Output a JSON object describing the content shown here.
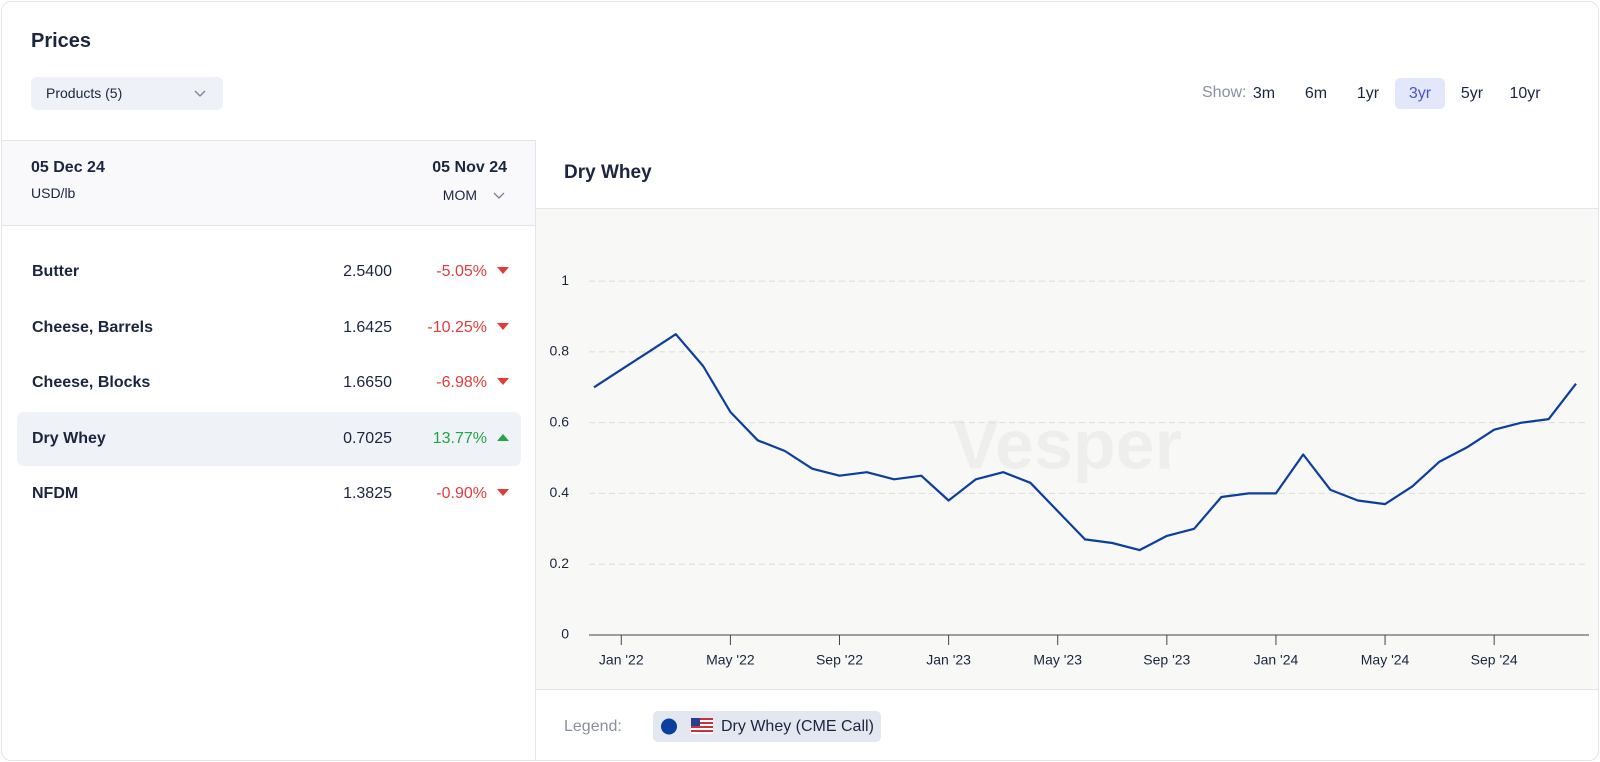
{
  "header": {
    "title": "Prices",
    "products_dropdown": "Products (5)",
    "show_label": "Show:",
    "ranges": [
      "3m",
      "6m",
      "1yr",
      "3yr",
      "5yr",
      "10yr"
    ],
    "selected_range": 3
  },
  "table": {
    "date": "05 Dec 24",
    "unit": "USD/lb",
    "compare_date": "05 Nov 24",
    "compare_mode": "MOM",
    "selected_row": 3,
    "rows": [
      {
        "name": "Butter",
        "price": "2.5400",
        "change": "-5.05%",
        "direction": "down"
      },
      {
        "name": "Cheese, Barrels",
        "price": "1.6425",
        "change": "-10.25%",
        "direction": "down"
      },
      {
        "name": "Cheese, Blocks",
        "price": "1.6650",
        "change": "-6.98%",
        "direction": "down"
      },
      {
        "name": "Dry Whey",
        "price": "0.7025",
        "change": "13.77%",
        "direction": "up"
      },
      {
        "name": "NFDM",
        "price": "1.3825",
        "change": "-0.90%",
        "direction": "down"
      }
    ]
  },
  "chart_data": {
    "type": "line",
    "title": "Dry Whey",
    "watermark": "Vesper",
    "legend_label": "Legend:",
    "x": [
      "2021-12",
      "2022-01",
      "2022-02",
      "2022-03",
      "2022-04",
      "2022-05",
      "2022-06",
      "2022-07",
      "2022-08",
      "2022-09",
      "2022-10",
      "2022-11",
      "2022-12",
      "2023-01",
      "2023-02",
      "2023-03",
      "2023-04",
      "2023-05",
      "2023-06",
      "2023-07",
      "2023-08",
      "2023-09",
      "2023-10",
      "2023-11",
      "2023-12",
      "2024-01",
      "2024-02",
      "2024-03",
      "2024-04",
      "2024-05",
      "2024-06",
      "2024-07",
      "2024-08",
      "2024-09",
      "2024-10",
      "2024-11",
      "2024-12"
    ],
    "series": [
      {
        "name": "Dry Whey (CME Call)",
        "color": "#0b3f9e",
        "values": [
          0.7,
          0.75,
          0.8,
          0.85,
          0.76,
          0.63,
          0.55,
          0.52,
          0.47,
          0.45,
          0.46,
          0.44,
          0.45,
          0.38,
          0.44,
          0.46,
          0.43,
          0.35,
          0.27,
          0.26,
          0.24,
          0.28,
          0.3,
          0.39,
          0.4,
          0.4,
          0.51,
          0.41,
          0.38,
          0.37,
          0.42,
          0.49,
          0.53,
          0.58,
          0.6,
          0.61,
          0.71
        ]
      }
    ],
    "xlim": [
      "2021-12",
      "2024-12"
    ],
    "xticks": [
      {
        "value": "2022-01",
        "label": "Jan '22"
      },
      {
        "value": "2022-05",
        "label": "May '22"
      },
      {
        "value": "2022-09",
        "label": "Sep '22"
      },
      {
        "value": "2023-01",
        "label": "Jan '23"
      },
      {
        "value": "2023-05",
        "label": "May '23"
      },
      {
        "value": "2023-09",
        "label": "Sep '23"
      },
      {
        "value": "2024-01",
        "label": "Jan '24"
      },
      {
        "value": "2024-05",
        "label": "May '24"
      },
      {
        "value": "2024-09",
        "label": "Sep '24"
      }
    ],
    "ylim": [
      0,
      1.15
    ],
    "yticks": [
      0,
      0.2,
      0.4,
      0.6,
      0.8,
      1
    ],
    "grid": true
  }
}
